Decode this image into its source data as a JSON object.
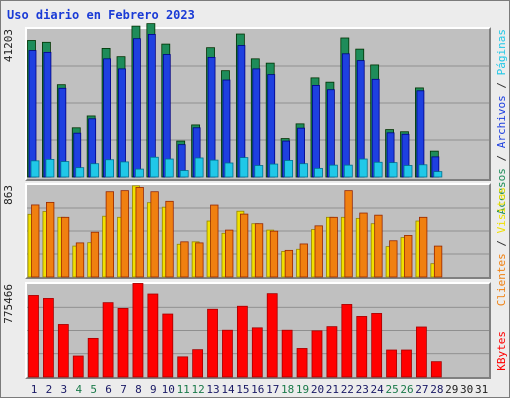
{
  "title": "Uso diario en Febrero 2023",
  "colors": {
    "background": "#ececec",
    "panel": "#c0c0c0",
    "grid": "#7f7f7f",
    "title": "#1a3bd6",
    "day_weekday": "#1a1a66",
    "day_weekend": "#1a7a4a",
    "day_future": "#222222"
  },
  "legend_right": {
    "panel1": [
      {
        "label": "Accesos",
        "color": "#1e8c5a"
      },
      {
        "label": "Archivos",
        "color": "#1e40e0"
      },
      {
        "label": "Páginas",
        "color": "#20c8e8"
      }
    ],
    "panel2": [
      {
        "label": "Clientes",
        "color": "#f08010"
      },
      {
        "label": "Visitas",
        "color": "#f0e000"
      }
    ],
    "panel3": [
      {
        "label": "KBytes",
        "color": "#ff0000"
      }
    ],
    "separator": "/"
  },
  "chart_data": [
    {
      "type": "bar",
      "ymax_label": "41203",
      "ylim": [
        0,
        41203
      ],
      "categories": [
        "1",
        "2",
        "3",
        "4",
        "5",
        "6",
        "7",
        "8",
        "9",
        "10",
        "11",
        "12",
        "13",
        "14",
        "15",
        "16",
        "17",
        "18",
        "19",
        "20",
        "21",
        "22",
        "23",
        "24",
        "25",
        "26",
        "27",
        "28",
        "29",
        "30",
        "31"
      ],
      "series": [
        {
          "name": "Accesos",
          "color": "#1e8c5a",
          "values": [
            38000,
            37500,
            25700,
            13700,
            17000,
            35800,
            33500,
            42000,
            42700,
            37000,
            10000,
            14500,
            36000,
            29600,
            39800,
            32900,
            31700,
            10700,
            14800,
            27600,
            26400,
            38700,
            35600,
            31200,
            13200,
            12600,
            24800,
            7200,
            0,
            0,
            0
          ]
        },
        {
          "name": "Archivos",
          "color": "#1e40e0",
          "values": [
            35200,
            34700,
            24700,
            12200,
            16200,
            32900,
            30100,
            38500,
            39700,
            34100,
            9000,
            13700,
            33300,
            27000,
            36600,
            30100,
            28500,
            10000,
            13600,
            25500,
            24300,
            34300,
            32400,
            27200,
            12300,
            11900,
            24000,
            5600,
            0,
            0,
            0
          ]
        },
        {
          "name": "Páginas",
          "color": "#20c8e8",
          "values": [
            4500,
            4900,
            4300,
            2600,
            3700,
            4800,
            4200,
            2200,
            5500,
            5000,
            1800,
            5300,
            4700,
            3900,
            5400,
            3200,
            3600,
            4600,
            3700,
            2400,
            3300,
            3300,
            5000,
            4100,
            4000,
            3200,
            3400,
            1500,
            0,
            0,
            0
          ]
        }
      ]
    },
    {
      "type": "bar",
      "ymax_label": "863",
      "ylim": [
        0,
        863
      ],
      "categories": [
        "1",
        "2",
        "3",
        "4",
        "5",
        "6",
        "7",
        "8",
        "9",
        "10",
        "11",
        "12",
        "13",
        "14",
        "15",
        "16",
        "17",
        "18",
        "19",
        "20",
        "21",
        "22",
        "23",
        "24",
        "25",
        "26",
        "27",
        "28",
        "29",
        "30",
        "31"
      ],
      "series": [
        {
          "name": "Visitas",
          "color": "#f0e000",
          "values": [
            588,
            614,
            560,
            290,
            322,
            570,
            560,
            855,
            697,
            655,
            307,
            330,
            525,
            410,
            617,
            500,
            440,
            240,
            260,
            445,
            560,
            560,
            550,
            500,
            285,
            370,
            525,
            125,
            0,
            0,
            0
          ]
        },
        {
          "name": "Clientes",
          "color": "#f08010",
          "values": [
            676,
            700,
            560,
            320,
            420,
            800,
            810,
            840,
            800,
            710,
            330,
            320,
            675,
            440,
            590,
            500,
            430,
            250,
            310,
            480,
            560,
            810,
            600,
            580,
            340,
            390,
            560,
            290,
            0,
            0,
            0
          ]
        }
      ]
    },
    {
      "type": "bar",
      "ymax_label": "775466",
      "ylim": [
        0,
        775466
      ],
      "categories": [
        "1",
        "2",
        "3",
        "4",
        "5",
        "6",
        "7",
        "8",
        "9",
        "10",
        "11",
        "12",
        "13",
        "14",
        "15",
        "16",
        "17",
        "18",
        "19",
        "20",
        "21",
        "22",
        "23",
        "24",
        "25",
        "26",
        "27",
        "28",
        "29",
        "30",
        "31"
      ],
      "series": [
        {
          "name": "KBytes",
          "color": "#ff0000",
          "values": [
            680000,
            655000,
            438000,
            175000,
            322000,
            620000,
            572000,
            780000,
            692000,
            525000,
            168000,
            228000,
            565000,
            390000,
            590000,
            410000,
            695000,
            390000,
            238000,
            385000,
            420000,
            605000,
            505000,
            530000,
            225000,
            225000,
            417000,
            128000,
            0,
            0,
            0
          ]
        }
      ]
    }
  ]
}
